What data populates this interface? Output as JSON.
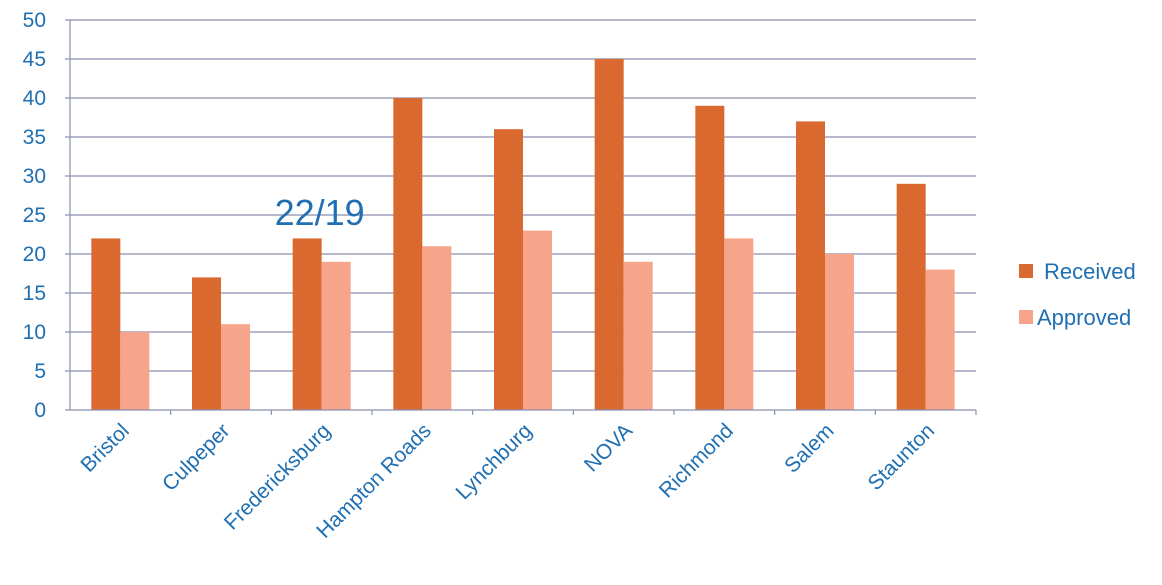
{
  "chart_data": {
    "type": "bar",
    "title": "",
    "xlabel": "",
    "ylabel": "",
    "categories": [
      "Bristol",
      "Culpeper",
      "Fredericksburg",
      "Hampton Roads",
      "Lynchburg",
      "NOVA",
      "Richmond",
      "Salem",
      "Staunton"
    ],
    "series": [
      {
        "name": "Received",
        "values": [
          22,
          17,
          22,
          40,
          36,
          45,
          39,
          37,
          29
        ],
        "color": "#d9692f"
      },
      {
        "name": "Approved",
        "values": [
          10,
          11,
          19,
          21,
          23,
          19,
          22,
          20,
          18
        ],
        "color": "#f7a58a"
      }
    ],
    "ylim": [
      0,
      50
    ],
    "yticks": [
      0,
      5,
      10,
      15,
      20,
      25,
      30,
      35,
      40,
      45,
      50
    ],
    "grid": true,
    "legend_position": "right",
    "annotations": [
      {
        "text": "22/19",
        "category": "Fredericksburg"
      }
    ],
    "colors": {
      "text": "#1f6fb2",
      "grid": "#8a8fb0",
      "axis": "#8a8fb0"
    }
  }
}
